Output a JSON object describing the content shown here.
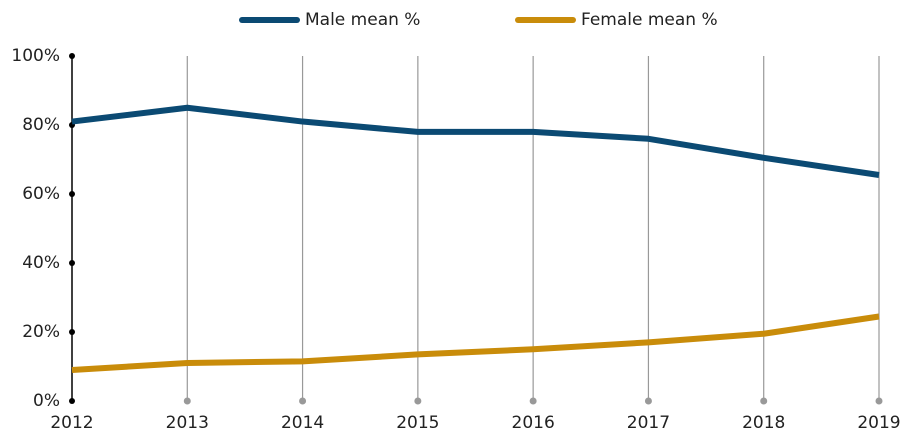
{
  "chart_data": {
    "type": "line",
    "categories": [
      "2012",
      "2013",
      "2014",
      "2015",
      "2016",
      "2017",
      "2018",
      "2019"
    ],
    "series": [
      {
        "name": "Male mean %",
        "color": "#0b4a73",
        "values": [
          81,
          85,
          81,
          78,
          78,
          76,
          70.5,
          65.5
        ]
      },
      {
        "name": "Female mean %",
        "color": "#c98c0a",
        "values": [
          9,
          11,
          11.5,
          13.5,
          15,
          17,
          19.5,
          24.5
        ]
      }
    ],
    "ylim": [
      0,
      100
    ],
    "yticks": [
      {
        "value": 0,
        "label": "0%"
      },
      {
        "value": 20,
        "label": "20%"
      },
      {
        "value": 40,
        "label": "40%"
      },
      {
        "value": 60,
        "label": "60%"
      },
      {
        "value": 80,
        "label": "80%"
      },
      {
        "value": 100,
        "label": "100%"
      }
    ],
    "xgrid": true,
    "legend": "top"
  }
}
